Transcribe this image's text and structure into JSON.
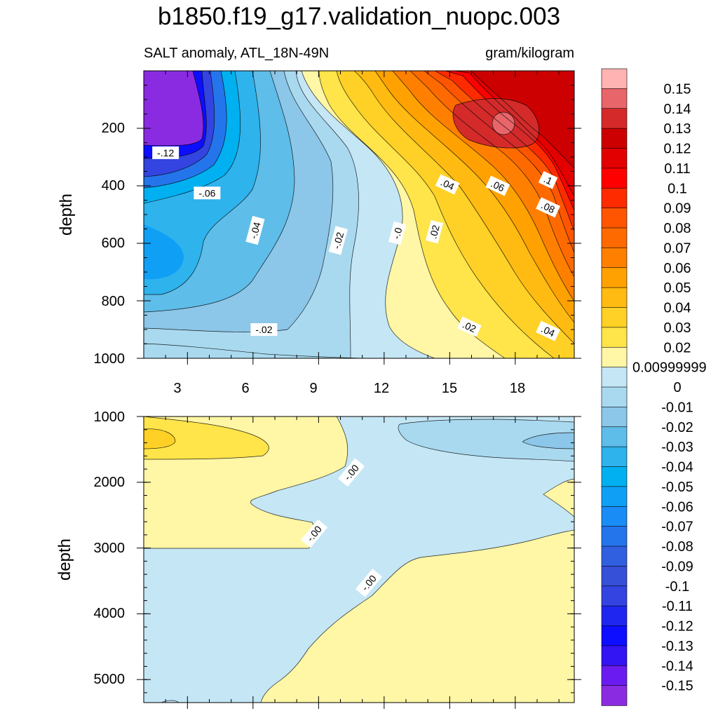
{
  "figure": {
    "title": "b1850.f19_g17.validation_nuopc.003",
    "subtitle_left": "SALT anomaly, ATL_18N-49N",
    "subtitle_right": "gram/kilogram"
  },
  "chart_data": [
    {
      "type": "heatmap",
      "panel": "upper",
      "ylabel": "depth",
      "xlabel": "",
      "x_range": [
        1,
        20.7
      ],
      "y_range": [
        0,
        1000
      ],
      "y_reversed": true,
      "x_ticks": [
        3,
        6,
        9,
        12,
        15,
        18
      ],
      "y_ticks": [
        200,
        400,
        600,
        800,
        1000
      ],
      "contour_labels": [
        {
          "text": "-.12",
          "x": 2.0,
          "y": 285
        },
        {
          "text": "-.06",
          "x": 3.9,
          "y": 425
        },
        {
          "text": "-.04",
          "x": 6.1,
          "y": 555
        },
        {
          "text": "-.02",
          "x": 9.9,
          "y": 590
        },
        {
          "text": "-.0",
          "x": 12.6,
          "y": 565
        },
        {
          "text": ".02",
          "x": 14.3,
          "y": 560
        },
        {
          "text": ".04",
          "x": 14.9,
          "y": 395
        },
        {
          "text": ".06",
          "x": 17.2,
          "y": 400
        },
        {
          "text": ".1",
          "x": 19.5,
          "y": 380
        },
        {
          "text": ".08",
          "x": 19.5,
          "y": 475
        },
        {
          "text": "-.02",
          "x": 6.5,
          "y": 900
        },
        {
          "text": ".02",
          "x": 15.9,
          "y": 890
        },
        {
          "text": ".04",
          "x": 19.5,
          "y": 905
        }
      ]
    },
    {
      "type": "heatmap",
      "panel": "lower",
      "ylabel": "depth",
      "xlabel": "",
      "x_range": [
        1,
        20.7
      ],
      "y_range": [
        1000,
        5350
      ],
      "y_reversed": true,
      "y_ticks": [
        1000,
        2000,
        3000,
        4000,
        5000
      ],
      "contour_labels": [
        {
          "text": "-.00",
          "x": 10.5,
          "y": 1850
        },
        {
          "text": "-.00",
          "x": 8.8,
          "y": 2780
        },
        {
          "text": "-.00",
          "x": 11.3,
          "y": 3530
        }
      ]
    }
  ],
  "colorbar": {
    "labels": [
      "0.15",
      "0.14",
      "0.13",
      "0.12",
      "0.11",
      "0.1",
      "0.09",
      "0.08",
      "0.07",
      "0.06",
      "0.05",
      "0.04",
      "0.03",
      "0.02",
      "0.00999999",
      "0",
      "-0.01",
      "-0.02",
      "-0.03",
      "-0.04",
      "-0.05",
      "-0.06",
      "-0.07",
      "-0.08",
      "-0.09",
      "-0.1",
      "-0.11",
      "-0.12",
      "-0.13",
      "-0.14",
      "-0.15"
    ],
    "colors": [
      "#ffb3b3",
      "#e8656a",
      "#d42a2a",
      "#cc0000",
      "#e30000",
      "#ff0000",
      "#ff2b00",
      "#ff5500",
      "#ff6a00",
      "#ff8000",
      "#ffa100",
      "#ffbb12",
      "#ffd126",
      "#ffe44a",
      "#fff6a6",
      "#c4e6f5",
      "#a9d9ef",
      "#8cc6e8",
      "#5ebde9",
      "#2eb3ec",
      "#00b0f0",
      "#0fa0f5",
      "#1a8cf6",
      "#2475ec",
      "#3060e0",
      "#3650d8",
      "#3344e0",
      "#1f26f0",
      "#0d0dff",
      "#3314f2",
      "#6a1cf0",
      "#8a2be2"
    ]
  }
}
